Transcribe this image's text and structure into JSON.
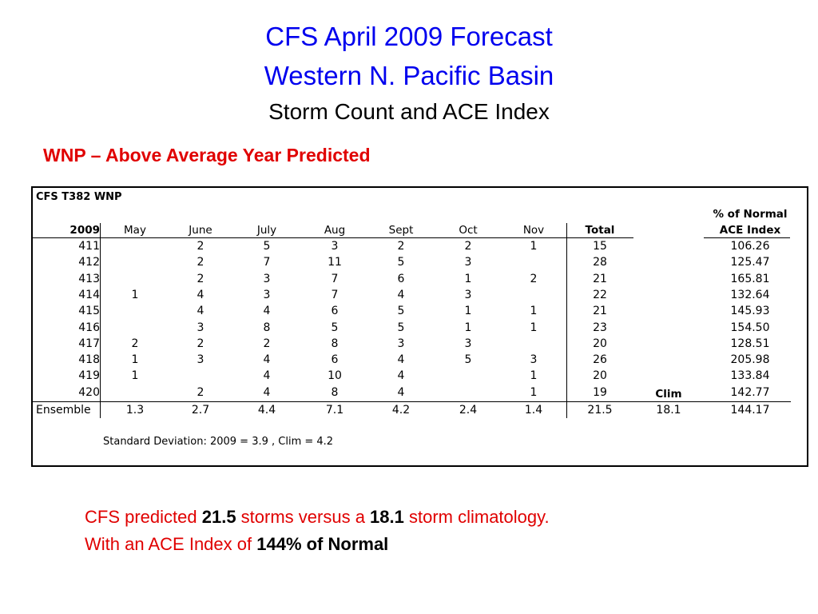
{
  "header": {
    "title_line1": "CFS April 2009 Forecast",
    "title_line2": "Western N. Pacific Basin",
    "subtitle": "Storm Count and ACE Index",
    "headline": "WNP – Above Average Year Predicted"
  },
  "table": {
    "title": "CFS T382  WNP",
    "pct_header_line1": "% of Normal",
    "pct_header_line2": "ACE Index",
    "year_header": "2009",
    "month_headers": [
      "May",
      "June",
      "July",
      "Aug",
      "Sept",
      "Oct",
      "Nov"
    ],
    "total_header": "Total",
    "rows": [
      {
        "id": "411",
        "months": [
          "",
          "2",
          "5",
          "3",
          "2",
          "2",
          "1"
        ],
        "total": "15",
        "ace": "106.26"
      },
      {
        "id": "412",
        "months": [
          "",
          "2",
          "7",
          "11",
          "5",
          "3",
          ""
        ],
        "total": "28",
        "ace": "125.47"
      },
      {
        "id": "413",
        "months": [
          "",
          "2",
          "3",
          "7",
          "6",
          "1",
          "2"
        ],
        "total": "21",
        "ace": "165.81"
      },
      {
        "id": "414",
        "months": [
          "1",
          "4",
          "3",
          "7",
          "4",
          "3",
          ""
        ],
        "total": "22",
        "ace": "132.64"
      },
      {
        "id": "415",
        "months": [
          "",
          "4",
          "4",
          "6",
          "5",
          "1",
          "1"
        ],
        "total": "21",
        "ace": "145.93"
      },
      {
        "id": "416",
        "months": [
          "",
          "3",
          "8",
          "5",
          "5",
          "1",
          "1"
        ],
        "total": "23",
        "ace": "154.50"
      },
      {
        "id": "417",
        "months": [
          "2",
          "2",
          "2",
          "8",
          "3",
          "3",
          ""
        ],
        "total": "20",
        "ace": "128.51"
      },
      {
        "id": "418",
        "months": [
          "1",
          "3",
          "4",
          "6",
          "4",
          "5",
          "3"
        ],
        "total": "26",
        "ace": "205.98"
      },
      {
        "id": "419",
        "months": [
          "1",
          "",
          "4",
          "10",
          "4",
          "",
          "1"
        ],
        "total": "20",
        "ace": "133.84"
      },
      {
        "id": "420",
        "months": [
          "",
          "2",
          "4",
          "8",
          "4",
          "",
          "1"
        ],
        "total": "19",
        "ace": "142.77"
      }
    ],
    "clim_label": "Clim",
    "ensemble": {
      "label": "Ensemble",
      "months": [
        "1.3",
        "2.7",
        "4.4",
        "7.1",
        "4.2",
        "2.4",
        "1.4"
      ],
      "total": "21.5",
      "clim": "18.1",
      "ace": "144.17"
    },
    "std_dev": "Standard Deviation:  2009 = 3.9 , Clim = 4.2"
  },
  "summary": {
    "line1_a": "CFS predicted ",
    "line1_b": "21.5",
    "line1_c": " storms versus a ",
    "line1_d": "18.1",
    "line1_e": " storm climatology.",
    "line2_a": "With an ACE Index of ",
    "line2_b": "144% of Normal"
  }
}
